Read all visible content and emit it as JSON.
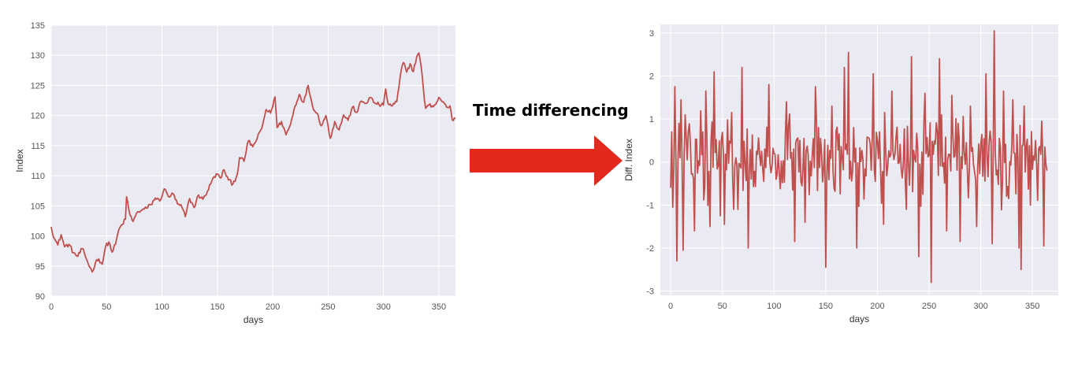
{
  "caption": "Time differencing",
  "colors": {
    "line": "#c0504d",
    "plot_bg": "#eaeaf2",
    "grid": "#ffffff",
    "arrow": "#e3281c",
    "tick_text": "#555555"
  },
  "chart_data": [
    {
      "type": "line",
      "title": "",
      "xlabel": "days",
      "ylabel": "Index",
      "xlim": [
        0,
        365
      ],
      "ylim": [
        90,
        135
      ],
      "xticks": [
        0,
        50,
        100,
        150,
        200,
        250,
        300,
        350
      ],
      "yticks": [
        90,
        95,
        100,
        105,
        110,
        115,
        120,
        125,
        130,
        135
      ],
      "grid": true,
      "anchors": [
        [
          0,
          101.5
        ],
        [
          3,
          99.5
        ],
        [
          6,
          98.5
        ],
        [
          9,
          100.2
        ],
        [
          12,
          98.2
        ],
        [
          16,
          98.6
        ],
        [
          20,
          97.2
        ],
        [
          24,
          96.6
        ],
        [
          28,
          97.9
        ],
        [
          33,
          95.6
        ],
        [
          37,
          94.0
        ],
        [
          40,
          95.6
        ],
        [
          43,
          96.2
        ],
        [
          46,
          95.3
        ],
        [
          49,
          98.2
        ],
        [
          52,
          99.0
        ],
        [
          55,
          97.3
        ],
        [
          58,
          98.6
        ],
        [
          61,
          101.0
        ],
        [
          64,
          101.9
        ],
        [
          67,
          102.8
        ],
        [
          68,
          106.5
        ],
        [
          71,
          103.5
        ],
        [
          74,
          102.4
        ],
        [
          78,
          104.0
        ],
        [
          82,
          104.3
        ],
        [
          86,
          104.6
        ],
        [
          90,
          105.2
        ],
        [
          94,
          106.3
        ],
        [
          98,
          105.8
        ],
        [
          102,
          107.8
        ],
        [
          106,
          106.5
        ],
        [
          110,
          107.0
        ],
        [
          114,
          105.3
        ],
        [
          118,
          104.8
        ],
        [
          121,
          103.2
        ],
        [
          125,
          106.2
        ],
        [
          129,
          104.7
        ],
        [
          133,
          106.8
        ],
        [
          137,
          106.1
        ],
        [
          141,
          107.4
        ],
        [
          145,
          109.1
        ],
        [
          149,
          110.3
        ],
        [
          153,
          109.6
        ],
        [
          156,
          111.0
        ],
        [
          160,
          109.3
        ],
        [
          164,
          108.6
        ],
        [
          168,
          110.2
        ],
        [
          170,
          113.0
        ],
        [
          174,
          112.4
        ],
        [
          178,
          115.8
        ],
        [
          182,
          114.8
        ],
        [
          186,
          116.2
        ],
        [
          190,
          117.8
        ],
        [
          194,
          121.0
        ],
        [
          198,
          120.4
        ],
        [
          202,
          123.1
        ],
        [
          204,
          118.0
        ],
        [
          208,
          119.0
        ],
        [
          212,
          116.8
        ],
        [
          216,
          118.5
        ],
        [
          220,
          121.5
        ],
        [
          224,
          123.5
        ],
        [
          228,
          122.2
        ],
        [
          232,
          125.0
        ],
        [
          236,
          121.5
        ],
        [
          240,
          120.4
        ],
        [
          244,
          118.3
        ],
        [
          248,
          120.0
        ],
        [
          252,
          116.2
        ],
        [
          256,
          119.0
        ],
        [
          260,
          117.6
        ],
        [
          264,
          120.1
        ],
        [
          268,
          119.2
        ],
        [
          272,
          121.4
        ],
        [
          276,
          120.5
        ],
        [
          280,
          122.4
        ],
        [
          284,
          122.0
        ],
        [
          288,
          123.0
        ],
        [
          292,
          122.1
        ],
        [
          296,
          121.8
        ],
        [
          300,
          121.7
        ],
        [
          302,
          124.4
        ],
        [
          304,
          122.0
        ],
        [
          308,
          121.6
        ],
        [
          312,
          122.3
        ],
        [
          314,
          124.8
        ],
        [
          316,
          127.5
        ],
        [
          318,
          128.8
        ],
        [
          321,
          127.2
        ],
        [
          324,
          128.6
        ],
        [
          327,
          127.3
        ],
        [
          330,
          129.8
        ],
        [
          332,
          130.4
        ],
        [
          334,
          128.2
        ],
        [
          336,
          124.5
        ],
        [
          338,
          121.2
        ],
        [
          341,
          121.7
        ],
        [
          344,
          121.6
        ],
        [
          347,
          121.8
        ],
        [
          350,
          123.0
        ],
        [
          353,
          122.3
        ],
        [
          356,
          121.8
        ],
        [
          358,
          121.3
        ],
        [
          360,
          121.6
        ],
        [
          362,
          119.3
        ],
        [
          365,
          119.5
        ]
      ]
    },
    {
      "type": "line",
      "title": "",
      "xlabel": "days",
      "ylabel": "Diff. Index",
      "xlim": [
        -10,
        375
      ],
      "ylim": [
        -3.1,
        3.2
      ],
      "xticks": [
        0,
        50,
        100,
        150,
        200,
        250,
        300,
        350
      ],
      "yticks": [
        -3,
        -2,
        -1,
        0,
        1,
        2,
        3
      ],
      "grid": true,
      "peaks": [
        [
          0,
          -0.6
        ],
        [
          2,
          -1.05
        ],
        [
          4,
          1.75
        ],
        [
          6,
          -2.3
        ],
        [
          8,
          0.9
        ],
        [
          10,
          1.45
        ],
        [
          12,
          -2.05
        ],
        [
          14,
          1.1
        ],
        [
          23,
          -1.6
        ],
        [
          34,
          1.65
        ],
        [
          38,
          -1.5
        ],
        [
          42,
          2.1
        ],
        [
          48,
          -1.25
        ],
        [
          52,
          -1.45
        ],
        [
          65,
          -1.1
        ],
        [
          69,
          2.2
        ],
        [
          75,
          -2.0
        ],
        [
          95,
          1.8
        ],
        [
          112,
          1.4
        ],
        [
          120,
          -1.85
        ],
        [
          130,
          -1.4
        ],
        [
          140,
          1.75
        ],
        [
          150,
          -2.45
        ],
        [
          156,
          1.3
        ],
        [
          168,
          2.2
        ],
        [
          172,
          2.55
        ],
        [
          180,
          -2.0
        ],
        [
          196,
          2.05
        ],
        [
          206,
          -1.45
        ],
        [
          214,
          1.65
        ],
        [
          228,
          -1.1
        ],
        [
          233,
          2.45
        ],
        [
          240,
          -2.2
        ],
        [
          246,
          1.6
        ],
        [
          252,
          -2.8
        ],
        [
          260,
          2.4
        ],
        [
          267,
          -1.6
        ],
        [
          272,
          1.55
        ],
        [
          280,
          -1.85
        ],
        [
          290,
          1.3
        ],
        [
          296,
          -1.5
        ],
        [
          305,
          2.05
        ],
        [
          311,
          -1.9
        ],
        [
          313,
          3.05
        ],
        [
          318,
          0.55
        ],
        [
          322,
          1.65
        ],
        [
          327,
          -0.85
        ],
        [
          331,
          1.45
        ],
        [
          337,
          -2.0
        ],
        [
          339,
          -2.5
        ],
        [
          342,
          1.3
        ],
        [
          348,
          -1.0
        ],
        [
          353,
          0.5
        ],
        [
          359,
          0.95
        ],
        [
          361,
          -1.95
        ],
        [
          362,
          0.35
        ],
        [
          364,
          -0.2
        ]
      ]
    }
  ]
}
